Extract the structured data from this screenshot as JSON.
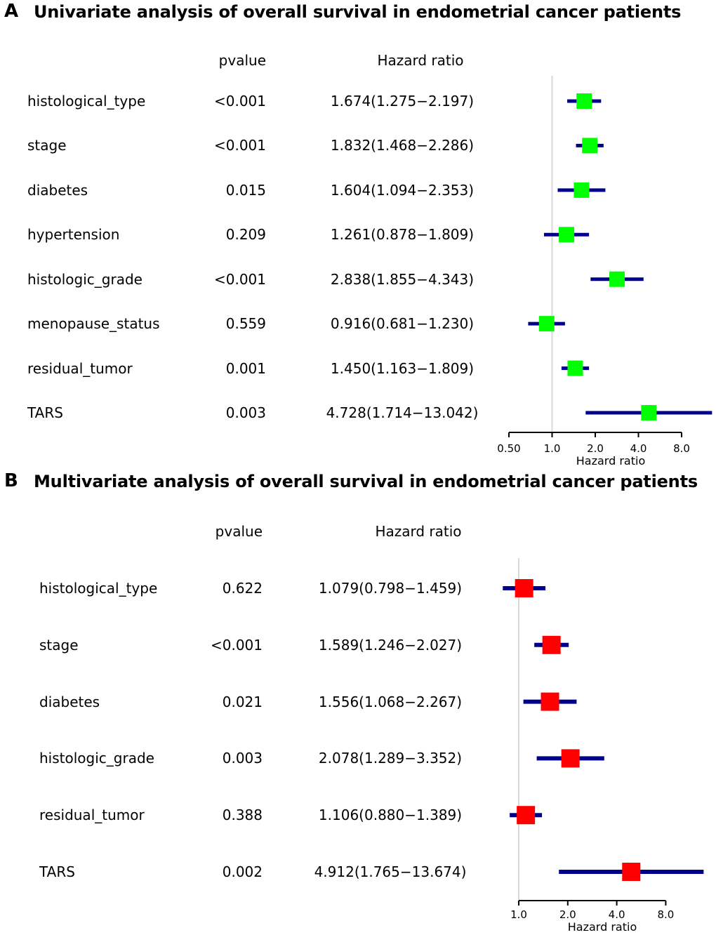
{
  "chart_data": [
    {
      "type": "forest",
      "panel_label": "A",
      "title": "Univariate analysis of overall survival in endometrial cancer patients",
      "col_headers": {
        "pvalue": "pvalue",
        "hazard_ratio": "Hazard ratio"
      },
      "xlabel": "Hazard ratio",
      "xscale": "log2",
      "xlim": [
        0.5,
        8.0
      ],
      "ref_line": 1.0,
      "xticks": [
        0.5,
        1.0,
        2.0,
        4.0,
        8.0
      ],
      "xtick_labels": [
        "0.50",
        "1.0",
        "2.0",
        "4.0",
        "8.0"
      ],
      "legend_position": "none",
      "grid": false,
      "colors": {
        "marker": "#00FF00",
        "ci_line": "#00008B",
        "ref_line": "#D8D8D8",
        "axis": "#000000",
        "text": "#000000"
      },
      "rows": [
        {
          "name": "histological_type",
          "pvalue": "<0.001",
          "hr_label": "1.674(1.275−2.197)",
          "hr": 1.674,
          "ci_low": 1.275,
          "ci_high": 2.197
        },
        {
          "name": "stage",
          "pvalue": "<0.001",
          "hr_label": "1.832(1.468−2.286)",
          "hr": 1.832,
          "ci_low": 1.468,
          "ci_high": 2.286
        },
        {
          "name": "diabetes",
          "pvalue": "0.015",
          "hr_label": "1.604(1.094−2.353)",
          "hr": 1.604,
          "ci_low": 1.094,
          "ci_high": 2.353
        },
        {
          "name": "hypertension",
          "pvalue": "0.209",
          "hr_label": "1.261(0.878−1.809)",
          "hr": 1.261,
          "ci_low": 0.878,
          "ci_high": 1.809
        },
        {
          "name": "histologic_grade",
          "pvalue": "<0.001",
          "hr_label": "2.838(1.855−4.343)",
          "hr": 2.838,
          "ci_low": 1.855,
          "ci_high": 4.343
        },
        {
          "name": "menopause_status",
          "pvalue": "0.559",
          "hr_label": "0.916(0.681−1.230)",
          "hr": 0.916,
          "ci_low": 0.681,
          "ci_high": 1.23
        },
        {
          "name": "residual_tumor",
          "pvalue": "0.001",
          "hr_label": "1.450(1.163−1.809)",
          "hr": 1.45,
          "ci_low": 1.163,
          "ci_high": 1.809
        },
        {
          "name": "TARS",
          "pvalue": "0.003",
          "hr_label": "4.728(1.714−13.042)",
          "hr": 4.728,
          "ci_low": 1.714,
          "ci_high": 13.042
        }
      ]
    },
    {
      "type": "forest",
      "panel_label": "B",
      "title": "Multivariate analysis of overall survival in endometrial cancer patients",
      "col_headers": {
        "pvalue": "pvalue",
        "hazard_ratio": "Hazard ratio"
      },
      "xlabel": "Hazard ratio",
      "xscale": "log2",
      "xlim": [
        1.0,
        8.0
      ],
      "ref_line": 1.0,
      "xticks": [
        1.0,
        2.0,
        4.0,
        8.0
      ],
      "xtick_labels": [
        "1.0",
        "2.0",
        "4.0",
        "8.0"
      ],
      "legend_position": "none",
      "grid": false,
      "colors": {
        "marker": "#FF0000",
        "ci_line": "#00008B",
        "ref_line": "#D8D8D8",
        "axis": "#000000",
        "text": "#000000"
      },
      "rows": [
        {
          "name": "histological_type",
          "pvalue": "0.622",
          "hr_label": "1.079(0.798−1.459)",
          "hr": 1.079,
          "ci_low": 0.798,
          "ci_high": 1.459
        },
        {
          "name": "stage",
          "pvalue": "<0.001",
          "hr_label": "1.589(1.246−2.027)",
          "hr": 1.589,
          "ci_low": 1.246,
          "ci_high": 2.027
        },
        {
          "name": "diabetes",
          "pvalue": "0.021",
          "hr_label": "1.556(1.068−2.267)",
          "hr": 1.556,
          "ci_low": 1.068,
          "ci_high": 2.267
        },
        {
          "name": "histologic_grade",
          "pvalue": "0.003",
          "hr_label": "2.078(1.289−3.352)",
          "hr": 2.078,
          "ci_low": 1.289,
          "ci_high": 3.352
        },
        {
          "name": "residual_tumor",
          "pvalue": "0.388",
          "hr_label": "1.106(0.880−1.389)",
          "hr": 1.106,
          "ci_low": 0.88,
          "ci_high": 1.389
        },
        {
          "name": "TARS",
          "pvalue": "0.002",
          "hr_label": "4.912(1.765−13.674)",
          "hr": 4.912,
          "ci_low": 1.765,
          "ci_high": 13.674
        }
      ]
    }
  ]
}
